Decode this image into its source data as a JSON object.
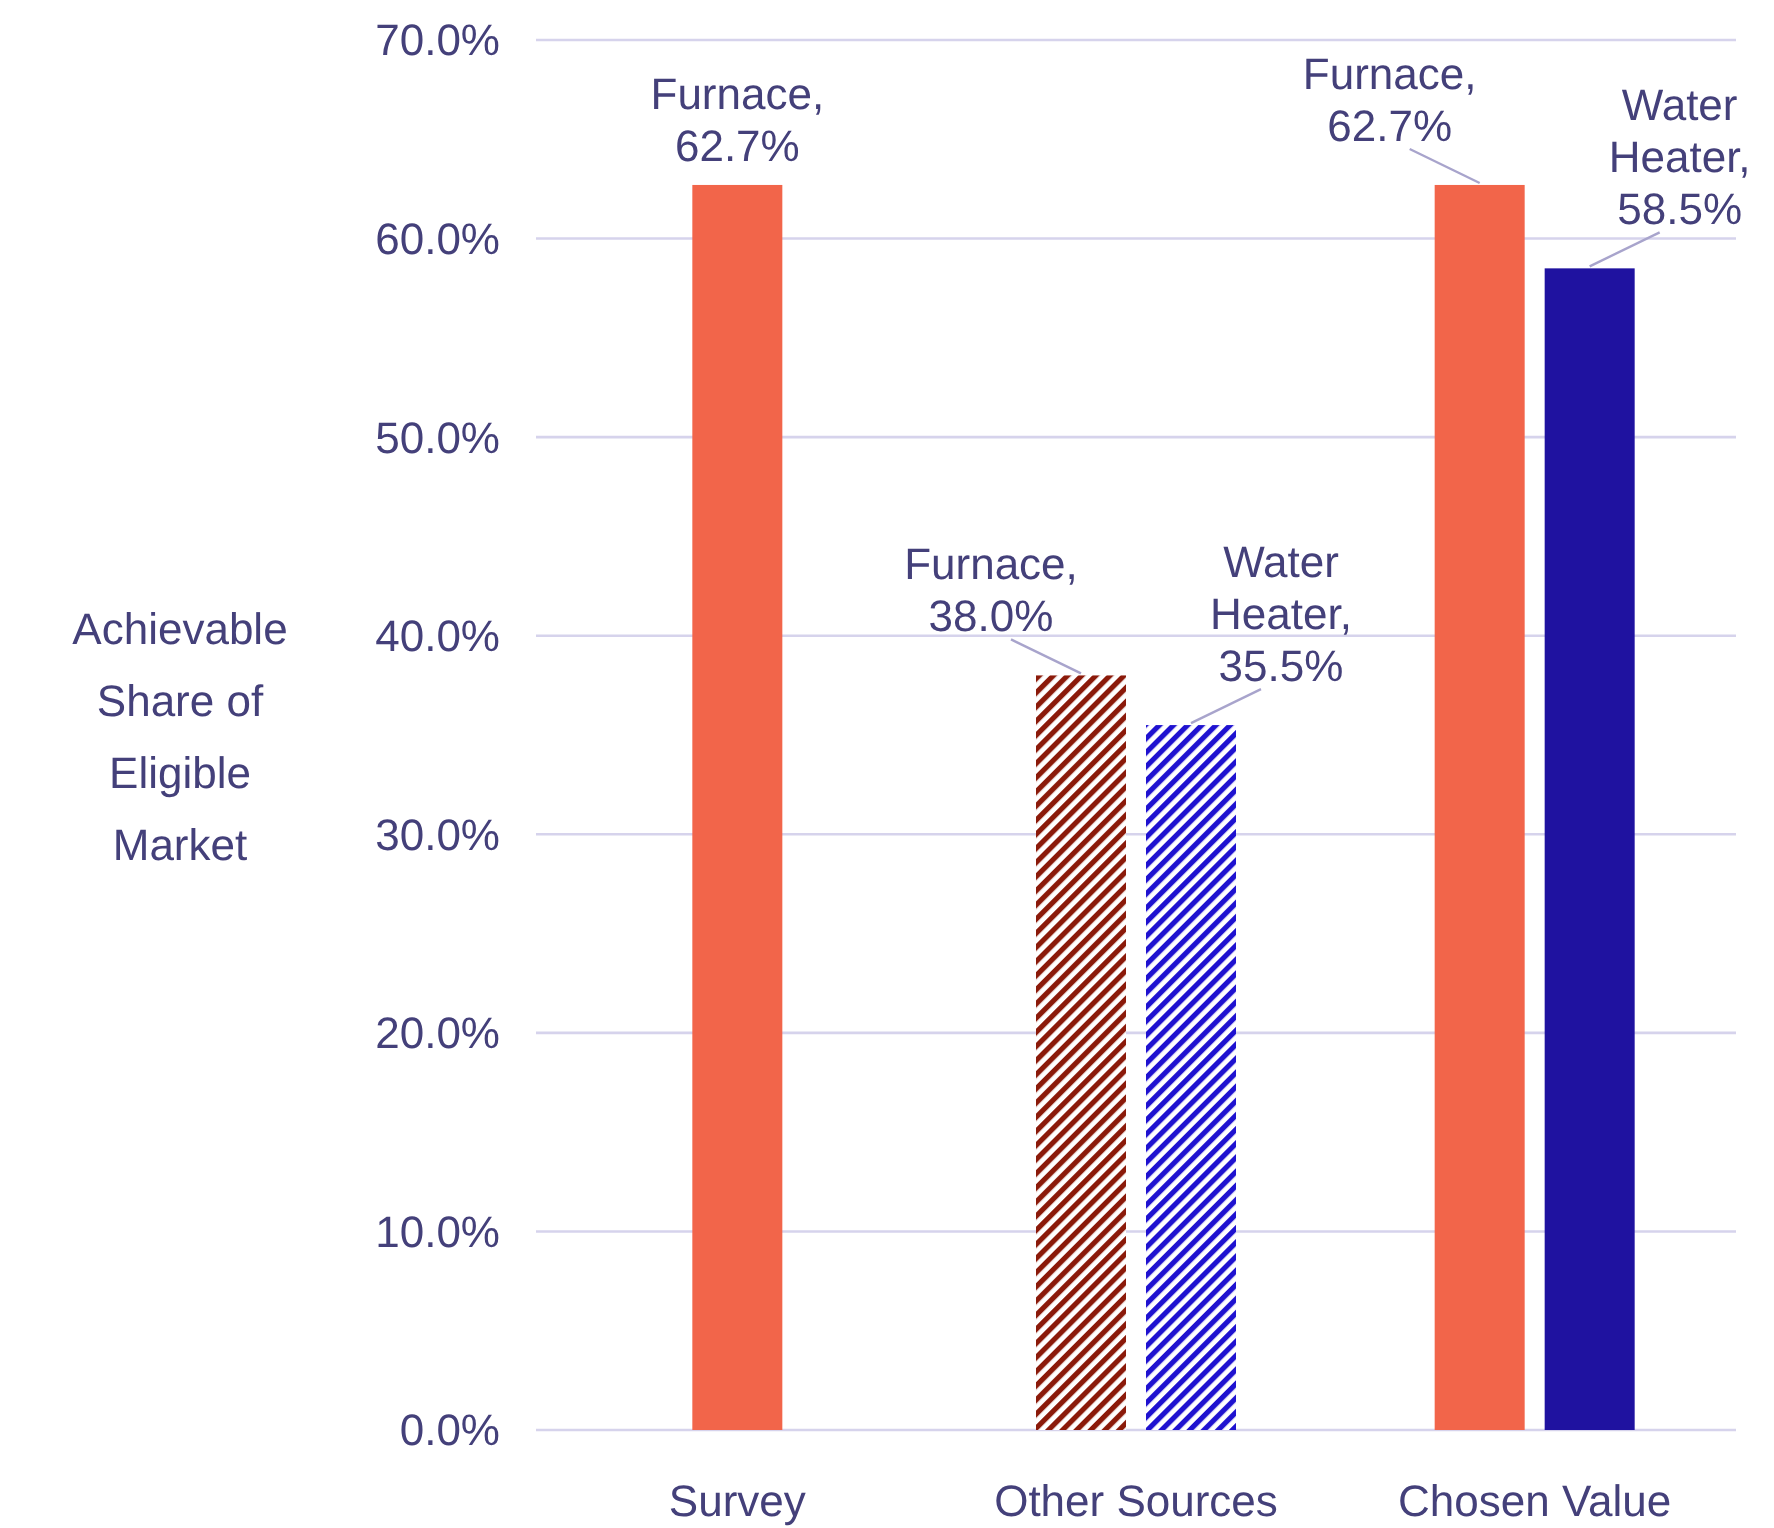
{
  "chart_data": {
    "type": "bar",
    "ylabel": "Achievable Share of Eligible Market",
    "categories": [
      "Survey",
      "Other Sources",
      "Chosen Value"
    ],
    "series": [
      {
        "name": "Furnace",
        "color": "#f2654a",
        "colors": [
          "#f2654a",
          "#8b1a0a",
          "#f2654a"
        ],
        "values": [
          62.7,
          38.0,
          62.7
        ],
        "value_labels": [
          ", 62.7%",
          ", 38.0%",
          ", 62.7%"
        ]
      },
      {
        "name": "Water Heater",
        "color": "#1f12a0",
        "colors": [
          null,
          "#1f12d0",
          "#1f12a0"
        ],
        "values": [
          null,
          35.5,
          58.5
        ],
        "value_labels": [
          null,
          ", 35.5%",
          ", 58.5%"
        ]
      }
    ],
    "ylim": [
      0,
      70
    ],
    "yticks": [
      {
        "value": 0,
        "label": "0.0%"
      },
      {
        "value": 10,
        "label": "10.0%"
      },
      {
        "value": 20,
        "label": "20.0%"
      },
      {
        "value": 30,
        "label": "30.0%"
      },
      {
        "value": 40,
        "label": "40.0%"
      },
      {
        "value": 50,
        "label": "50.0%"
      },
      {
        "value": 60,
        "label": "60.0%"
      },
      {
        "value": 70,
        "label": "70.0%"
      }
    ],
    "grid": "y"
  }
}
